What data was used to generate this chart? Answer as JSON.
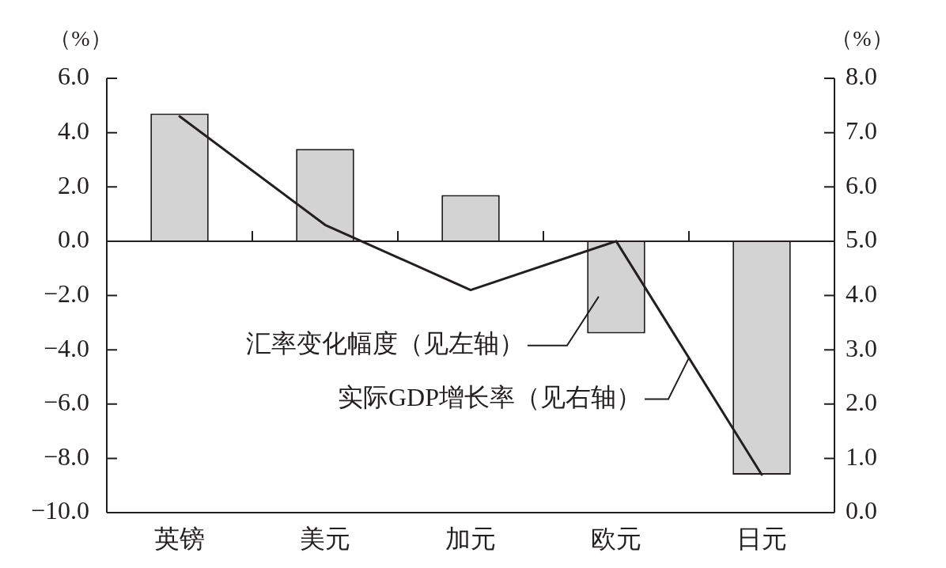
{
  "chart_data": {
    "type": "bar",
    "categories": [
      "英镑",
      "美元",
      "加元",
      "欧元",
      "日元"
    ],
    "ylabel": "（%）",
    "y2label": "（%）",
    "series": [
      {
        "name": "汇率变化幅度（见左轴）",
        "color": "#d3d3d3",
        "values": [
          4.7,
          3.4,
          1.7,
          -3.4,
          -8.6
        ]
      },
      {
        "name": "实际GDP增长率（见右轴）",
        "type": "line",
        "axis": "y2",
        "color": "#231f20",
        "values": [
          7.3,
          5.3,
          4.1,
          5.0,
          0.7
        ]
      }
    ],
    "ylim": [
      -10,
      6
    ],
    "yticks": [
      {
        "value": -10,
        "label": "−10.0"
      },
      {
        "value": -8,
        "label": "−8.0"
      },
      {
        "value": -6,
        "label": "−6.0"
      },
      {
        "value": -4,
        "label": "−4.0"
      },
      {
        "value": -2,
        "label": "−2.0"
      },
      {
        "value": 0,
        "label": "0.0"
      },
      {
        "value": 2,
        "label": "2.0"
      },
      {
        "value": 4,
        "label": "4.0"
      },
      {
        "value": 6,
        "label": "6.0"
      }
    ],
    "y2lim": [
      0,
      8
    ],
    "y2ticks": [
      {
        "value": 0,
        "label": "0.0"
      },
      {
        "value": 1,
        "label": "1.0"
      },
      {
        "value": 2,
        "label": "2.0"
      },
      {
        "value": 3,
        "label": "3.0"
      },
      {
        "value": 4,
        "label": "4.0"
      },
      {
        "value": 5,
        "label": "5.0"
      },
      {
        "value": 6,
        "label": "6.0"
      },
      {
        "value": 7,
        "label": "7.0"
      },
      {
        "value": 8,
        "label": "8.0"
      }
    ]
  }
}
